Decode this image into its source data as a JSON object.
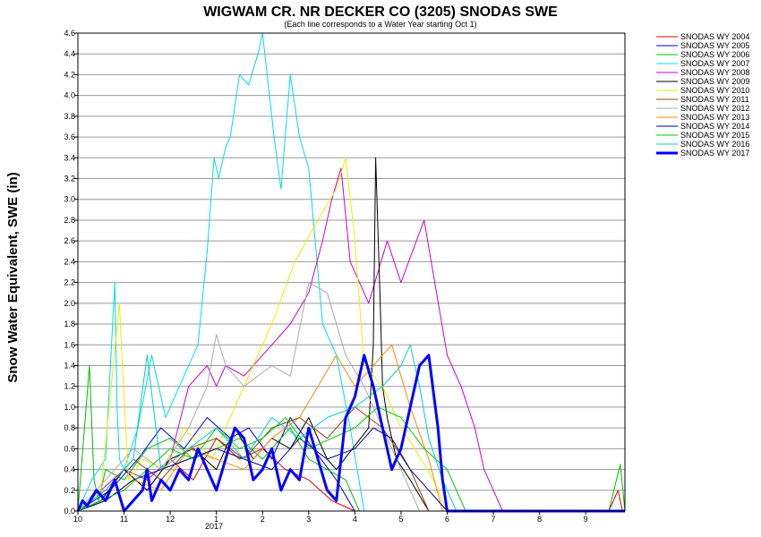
{
  "chart_data": {
    "type": "line",
    "title": "WIGWAM CR. NR DECKER CO (3205) SNODAS SWE",
    "subtitle": "(Each line corresponds to a Water Year starting Oct 1)",
    "ylabel": "Snow Water Equivalent, SWE (in)",
    "xlabel": "",
    "x_tick_labels": [
      "10",
      "11",
      "12",
      "1",
      "2",
      "3",
      "4",
      "5",
      "6",
      "7",
      "8",
      "9"
    ],
    "x_year_label": "2017",
    "y_ticks": [
      "0.0",
      "0.2",
      "0.4",
      "0.6",
      "0.8",
      "1.0",
      "1.2",
      "1.4",
      "1.6",
      "1.8",
      "2.0",
      "2.2",
      "2.4",
      "2.6",
      "2.8",
      "3.0",
      "3.2",
      "3.4",
      "3.6",
      "3.8",
      "4.0",
      "4.2",
      "4.4",
      "4.6"
    ],
    "ylim": [
      0,
      4.6
    ],
    "xlim": [
      0,
      11.85
    ],
    "grid": true,
    "legend_position": "right",
    "series": [
      {
        "name": "SNODAS WY 2004",
        "color": "#dd0000",
        "width": 1,
        "x": [
          0,
          0.5,
          1.0,
          1.5,
          2.0,
          2.5,
          3.0,
          3.5,
          4.0,
          4.5,
          5.0,
          5.5,
          6.0,
          7.0,
          8.0,
          9.0,
          10.0,
          11.5,
          11.7,
          11.8
        ],
        "y": [
          0,
          0.1,
          0.4,
          0.2,
          0.5,
          0.3,
          0.7,
          0.5,
          0.6,
          0.4,
          0.3,
          0.1,
          0,
          0,
          0,
          0,
          0,
          0,
          0.2,
          0
        ]
      },
      {
        "name": "SNODAS WY 2005",
        "color": "#0000cc",
        "width": 1,
        "x": [
          0,
          0.7,
          1.3,
          1.8,
          2.3,
          2.8,
          3.3,
          3.7,
          4.2,
          4.6,
          5.1,
          5.6,
          6.0,
          7.0,
          11.85
        ],
        "y": [
          0,
          0.2,
          0.5,
          0.8,
          0.6,
          0.9,
          0.7,
          0.8,
          0.5,
          0.9,
          0.6,
          0.3,
          0,
          0,
          0
        ]
      },
      {
        "name": "SNODAS WY 2006",
        "color": "#00bb00",
        "width": 1,
        "x": [
          0,
          0.25,
          0.35,
          0.45,
          0.6,
          1.0,
          1.5,
          2.0,
          2.5,
          3.0,
          3.5,
          4.0,
          4.6,
          5.0,
          5.4,
          5.8,
          6.1,
          7.0,
          11.5,
          11.75,
          11.85
        ],
        "y": [
          0,
          1.4,
          0.3,
          0.1,
          0.4,
          0.3,
          0.6,
          0.7,
          0.5,
          0.6,
          0.7,
          0.5,
          0.8,
          0.5,
          0.4,
          0.3,
          0,
          0,
          0,
          0.45,
          0
        ]
      },
      {
        "name": "SNODAS WY 2007",
        "color": "#00dddd",
        "width": 1,
        "x": [
          0,
          0.3,
          0.6,
          0.8,
          0.85,
          0.9,
          1.0,
          1.3,
          1.6,
          1.9,
          2.2,
          2.6,
          2.8,
          2.95,
          3.05,
          3.1,
          3.2,
          3.3,
          3.5,
          3.7,
          3.9,
          4.0,
          4.1,
          4.25,
          4.4,
          4.6,
          4.8,
          5.0,
          5.3,
          5.6,
          5.9,
          6.2,
          7.0,
          11.85
        ],
        "y": [
          0,
          0.3,
          0.5,
          2.2,
          1.0,
          0.5,
          0.4,
          0.8,
          1.5,
          0.9,
          1.2,
          1.6,
          2.5,
          3.4,
          3.2,
          3.3,
          3.5,
          3.6,
          4.2,
          4.1,
          4.4,
          4.6,
          4.2,
          3.6,
          3.1,
          4.2,
          3.6,
          3.3,
          1.8,
          1.5,
          0.8,
          0,
          0,
          0
        ]
      },
      {
        "name": "SNODAS WY 2008",
        "color": "#cc00cc",
        "width": 1,
        "x": [
          0,
          0.5,
          1.0,
          1.5,
          2.0,
          2.4,
          2.8,
          3.0,
          3.2,
          3.6,
          4.2,
          4.6,
          5.0,
          5.3,
          5.5,
          5.7,
          5.9,
          6.3,
          6.7,
          7.0,
          7.5,
          8.0,
          8.3,
          8.6,
          8.8,
          9.0,
          9.2,
          9.5,
          10.0,
          11.85
        ],
        "y": [
          0,
          0.2,
          0.4,
          0.3,
          0.5,
          1.2,
          1.4,
          1.2,
          1.4,
          1.3,
          1.6,
          1.8,
          2.1,
          2.6,
          3.0,
          3.3,
          2.4,
          2.0,
          2.6,
          2.2,
          2.8,
          1.5,
          1.2,
          0.8,
          0.4,
          0.2,
          0,
          0,
          0,
          0
        ]
      },
      {
        "name": "SNODAS WY 2009",
        "color": "#000000",
        "width": 1,
        "x": [
          0,
          0.5,
          1.0,
          1.5,
          2.0,
          2.5,
          3.0,
          3.4,
          3.8,
          4.2,
          4.6,
          5.0,
          5.4,
          5.6,
          6.3,
          6.4,
          6.45,
          6.55,
          6.6,
          6.7,
          6.9,
          7.2,
          7.6,
          8.0,
          11.85
        ],
        "y": [
          0,
          0.1,
          0.4,
          0.2,
          0.5,
          0.6,
          0.4,
          0.8,
          0.5,
          0.7,
          0.6,
          0.9,
          0.5,
          0.4,
          0.8,
          1.6,
          3.4,
          2.0,
          1.2,
          0.9,
          0.5,
          0.3,
          0,
          0,
          0
        ]
      },
      {
        "name": "SNODAS WY 2010",
        "color": "#eeee00",
        "width": 1,
        "x": [
          0,
          0.5,
          0.9,
          0.95,
          1.1,
          1.4,
          1.9,
          2.3,
          2.9,
          3.3,
          3.8,
          4.2,
          4.7,
          5.2,
          5.6,
          5.8,
          6.0,
          6.2,
          6.6,
          7.0,
          7.3,
          7.7,
          8.0,
          11.85
        ],
        "y": [
          0,
          0.2,
          2.0,
          1.5,
          0.3,
          0.5,
          0.4,
          0.8,
          0.5,
          0.9,
          1.4,
          1.8,
          2.4,
          2.8,
          3.1,
          3.4,
          2.6,
          1.4,
          1.2,
          0.8,
          0.6,
          0.3,
          0,
          0
        ]
      },
      {
        "name": "SNODAS WY 2011",
        "color": "#884400",
        "width": 1,
        "x": [
          0,
          0.6,
          1.2,
          1.8,
          2.4,
          3.0,
          3.6,
          4.2,
          4.8,
          5.4,
          6.0,
          6.6,
          7.2,
          7.6,
          11.85
        ],
        "y": [
          0,
          0.2,
          0.5,
          0.3,
          0.6,
          0.7,
          0.5,
          0.8,
          0.9,
          0.7,
          1.0,
          0.8,
          0.4,
          0,
          0
        ]
      },
      {
        "name": "SNODAS WY 2012",
        "color": "#aaaaaa",
        "width": 1,
        "x": [
          0,
          0.6,
          1.2,
          1.8,
          2.4,
          2.8,
          3.0,
          3.2,
          3.6,
          4.2,
          4.6,
          5.0,
          5.4,
          5.8,
          6.2,
          6.6,
          7.0,
          7.4,
          11.85
        ],
        "y": [
          0,
          0.3,
          0.6,
          0.4,
          0.8,
          1.2,
          1.7,
          1.4,
          1.2,
          1.4,
          1.3,
          2.2,
          2.1,
          1.5,
          1.2,
          0.8,
          0.4,
          0,
          0
        ]
      },
      {
        "name": "SNODAS WY 2013",
        "color": "#ff8800",
        "width": 1,
        "x": [
          0,
          0.6,
          1.2,
          1.8,
          2.4,
          3.0,
          3.6,
          4.2,
          4.8,
          5.2,
          5.6,
          6.0,
          6.4,
          6.8,
          7.2,
          7.6,
          7.9,
          11.85
        ],
        "y": [
          0,
          0.1,
          0.3,
          0.2,
          0.6,
          0.5,
          0.4,
          0.7,
          0.9,
          1.2,
          1.5,
          1.2,
          1.4,
          1.6,
          1.0,
          0.5,
          0,
          0
        ]
      },
      {
        "name": "SNODAS WY 2014",
        "color": "#000088",
        "width": 1,
        "x": [
          0,
          0.6,
          1.2,
          1.8,
          2.4,
          3.0,
          3.6,
          4.2,
          4.8,
          5.4,
          6.0,
          6.4,
          6.8,
          7.2,
          7.6,
          8.0,
          11.85
        ],
        "y": [
          0,
          0.1,
          0.3,
          0.4,
          0.5,
          0.6,
          0.5,
          0.4,
          0.7,
          0.5,
          0.6,
          0.8,
          0.7,
          0.4,
          0.2,
          0,
          0
        ]
      },
      {
        "name": "SNODAS WY 2015",
        "color": "#00cc00",
        "width": 1,
        "x": [
          0,
          0.5,
          1.0,
          1.5,
          2.0,
          2.5,
          3.0,
          3.5,
          4.0,
          4.5,
          5.0,
          5.5,
          6.0,
          6.5,
          7.0,
          7.5,
          8.0,
          8.4,
          11.85
        ],
        "y": [
          0,
          0.1,
          0.2,
          0.4,
          0.6,
          0.5,
          0.8,
          0.6,
          0.7,
          0.9,
          0.6,
          0.7,
          0.8,
          1.0,
          0.9,
          0.6,
          0.4,
          0,
          0
        ]
      },
      {
        "name": "SNODAS WY 2016",
        "color": "#00cccc",
        "width": 1,
        "x": [
          0,
          0.6,
          1.2,
          1.5,
          1.8,
          2.4,
          3.0,
          3.6,
          4.2,
          4.8,
          5.4,
          6.0,
          6.6,
          7.0,
          7.2,
          7.4,
          7.6,
          7.9,
          8.2,
          11.85
        ],
        "y": [
          0,
          0.2,
          0.5,
          1.5,
          0.4,
          0.6,
          0.8,
          0.5,
          0.9,
          0.7,
          0.9,
          1.0,
          1.2,
          1.4,
          1.6,
          1.2,
          0.7,
          0.3,
          0,
          0
        ]
      },
      {
        "name": "SNODAS WY 2017",
        "color": "#0000ff",
        "width": 3,
        "x": [
          0,
          0.1,
          0.2,
          0.4,
          0.6,
          0.8,
          1.0,
          1.2,
          1.4,
          1.5,
          1.6,
          1.8,
          2.0,
          2.2,
          2.4,
          2.6,
          2.8,
          3.0,
          3.2,
          3.4,
          3.6,
          3.8,
          4.0,
          4.2,
          4.4,
          4.6,
          4.8,
          5.0,
          5.2,
          5.4,
          5.6,
          5.8,
          6.0,
          6.2,
          6.4,
          6.6,
          6.8,
          7.0,
          7.2,
          7.4,
          7.6,
          7.8,
          7.9,
          8.0,
          11.85
        ],
        "y": [
          0,
          0.1,
          0.05,
          0.2,
          0.1,
          0.3,
          0,
          0.1,
          0.2,
          0.4,
          0.1,
          0.3,
          0.2,
          0.4,
          0.3,
          0.6,
          0.4,
          0.2,
          0.5,
          0.8,
          0.7,
          0.3,
          0.4,
          0.6,
          0.2,
          0.4,
          0.3,
          0.8,
          0.5,
          0.2,
          0.1,
          0.9,
          1.1,
          1.5,
          1.2,
          0.8,
          0.4,
          0.6,
          1.0,
          1.4,
          1.5,
          0.8,
          0.3,
          0,
          0
        ]
      }
    ]
  }
}
